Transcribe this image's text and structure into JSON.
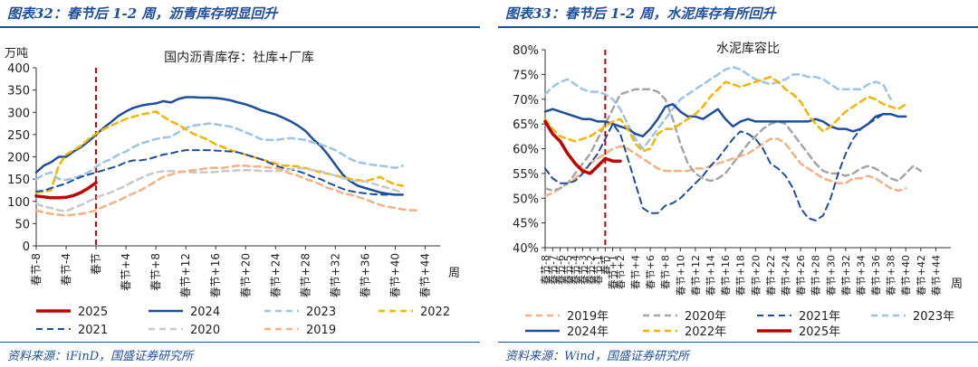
{
  "left": {
    "title": "图表32：春节后 1-2 周，沥青库存明显回升",
    "source": "资料来源：iFinD，国盛证券研究所",
    "chart_data": {
      "type": "line",
      "title": "国内沥青库存：社库+厂库",
      "ylabel": "万吨",
      "xlabel": "周",
      "ylim": [
        0,
        400
      ],
      "yticks": [
        0,
        50,
        100,
        150,
        200,
        250,
        300,
        350,
        400
      ],
      "x_start": -8,
      "x_end": 46,
      "xtick_labels": [
        "春节-8",
        "春节-4",
        "春节",
        "春节+4",
        "春节+8",
        "春节+12",
        "春节+16",
        "春节+20",
        "春节+24",
        "春节+28",
        "春节+32",
        "春节+36",
        "春节+40",
        "春节+44"
      ],
      "xtick_positions": [
        -8,
        -4,
        0,
        4,
        8,
        12,
        16,
        20,
        24,
        28,
        32,
        36,
        40,
        44
      ],
      "marker_x": 0,
      "marker_color": "#c00000",
      "series": [
        {
          "name": "2025",
          "color": "#c00000",
          "dash": "solid",
          "width": 3.5,
          "values": [
            112,
            110,
            108,
            108,
            109,
            113,
            120,
            130,
            142
          ]
        },
        {
          "name": "2024",
          "color": "#1f4e9c",
          "dash": "solid",
          "width": 2.5,
          "values": [
            165,
            180,
            188,
            200,
            200,
            212,
            222,
            235,
            250,
            265,
            278,
            292,
            302,
            310,
            315,
            318,
            320,
            325,
            322,
            330,
            334,
            334,
            333,
            333,
            332,
            330,
            327,
            322,
            318,
            312,
            305,
            300,
            295,
            288,
            280,
            270,
            258,
            240,
            225,
            205,
            182,
            160,
            145,
            135,
            130,
            125,
            120,
            117,
            115,
            115
          ]
        },
        {
          "name": "2023",
          "color": "#9dc3e6",
          "dash": "dashed",
          "width": 2.5,
          "values": [
            150,
            160,
            165,
            150,
            148,
            152,
            158,
            165,
            178,
            188,
            195,
            205,
            212,
            222,
            230,
            235,
            240,
            243,
            245,
            255,
            265,
            270,
            272,
            275,
            273,
            270,
            268,
            262,
            255,
            248,
            240,
            238,
            238,
            240,
            242,
            240,
            238,
            232,
            228,
            222,
            215,
            205,
            195,
            188,
            185,
            182,
            180,
            178,
            175,
            180
          ]
        },
        {
          "name": "2022",
          "color": "#f5b400",
          "dash": "dashed",
          "width": 2.5,
          "values": [
            120,
            122,
            125,
            180,
            205,
            215,
            225,
            240,
            252,
            262,
            270,
            278,
            285,
            290,
            295,
            298,
            302,
            290,
            280,
            272,
            262,
            252,
            245,
            238,
            228,
            222,
            215,
            210,
            205,
            200,
            195,
            190,
            185,
            180,
            180,
            178,
            175,
            170,
            165,
            162,
            158,
            155,
            150,
            148,
            145,
            150,
            155,
            145,
            138,
            135
          ]
        },
        {
          "name": "2021",
          "color": "#1f4e9c",
          "dash": "dashed",
          "width": 2.0,
          "values": [
            122,
            124,
            130,
            135,
            140,
            148,
            155,
            160,
            165,
            170,
            175,
            180,
            188,
            192,
            192,
            195,
            200,
            205,
            208,
            212,
            215,
            215,
            215,
            215,
            214,
            213,
            212,
            210,
            205,
            200,
            195,
            188,
            180,
            175,
            172,
            168,
            162,
            155,
            150,
            142,
            135,
            128,
            123,
            120,
            118,
            116,
            115,
            115,
            115,
            115
          ]
        },
        {
          "name": "2020",
          "color": "#c9c9c9",
          "dash": "dashed",
          "width": 2.5,
          "values": [
            95,
            88,
            85,
            80,
            78,
            85,
            92,
            100,
            108,
            115,
            120,
            128,
            135,
            145,
            152,
            160,
            165,
            168,
            168,
            167,
            166,
            165,
            165,
            165,
            166,
            168,
            168,
            170,
            170,
            170,
            168,
            168,
            168,
            170,
            172,
            175,
            173,
            170,
            168,
            162,
            158,
            152,
            148,
            145,
            145,
            140,
            135,
            130,
            125,
            120
          ]
        },
        {
          "name": "2019",
          "color": "#f4b183",
          "dash": "dashed",
          "width": 2.5,
          "values": [
            80,
            75,
            72,
            70,
            68,
            70,
            72,
            75,
            80,
            88,
            95,
            102,
            110,
            118,
            125,
            135,
            145,
            155,
            160,
            165,
            168,
            170,
            172,
            175,
            175,
            175,
            178,
            180,
            180,
            178,
            178,
            176,
            175,
            170,
            162,
            158,
            150,
            145,
            138,
            130,
            125,
            118,
            115,
            110,
            105,
            98,
            92,
            88,
            85,
            82,
            80,
            80
          ]
        }
      ]
    }
  },
  "right": {
    "title": "图表33：春节后 1-2 周，水泥库存有所回升",
    "source": "资料来源：Wind，国盛证券研究所",
    "chart_data": {
      "type": "line",
      "title": "水泥库容比",
      "xlabel": "周",
      "ylim": [
        40,
        80
      ],
      "yticks": [
        40,
        45,
        50,
        55,
        60,
        65,
        70,
        75,
        80
      ],
      "ytick_labels": [
        "40%",
        "45%",
        "50%",
        "55%",
        "60%",
        "65%",
        "70%",
        "75%",
        "80%"
      ],
      "x_start": -8,
      "x_end": 46,
      "xtick_labels": [
        "春节-8",
        "春节-7",
        "春节-6",
        "春节-5",
        "春节-4",
        "春节-3",
        "春节-2",
        "春节-1",
        "春节",
        "春节+1",
        "春节+2",
        "春节+4",
        "春节+6",
        "春节+8",
        "春节+10",
        "春节+12",
        "春节+14",
        "春节+16",
        "春节+18",
        "春节+20",
        "春节+22",
        "春节+24",
        "春节+26",
        "春节+28",
        "春节+30",
        "春节+32",
        "春节+34",
        "春节+36",
        "春节+38",
        "春节+40",
        "春节+42",
        "春节+44"
      ],
      "xtick_positions": [
        -8,
        -7,
        -6,
        -5,
        -4,
        -3,
        -2,
        -1,
        0,
        1,
        2,
        4,
        6,
        8,
        10,
        12,
        14,
        16,
        18,
        20,
        22,
        24,
        26,
        28,
        30,
        32,
        34,
        36,
        38,
        40,
        42,
        44
      ],
      "marker_x": 0,
      "marker_color": "#c00000",
      "series": [
        {
          "name": "2019年",
          "color": "#f4b183",
          "dash": "dashed",
          "width": 2.5,
          "values": [
            50.5,
            51,
            52,
            53,
            54,
            55.5,
            57,
            58,
            59,
            60,
            60.5,
            60,
            59,
            58,
            57,
            56,
            55.5,
            55.5,
            55.5,
            55.5,
            56,
            56,
            56.5,
            57,
            57.5,
            58,
            58.5,
            59,
            60,
            61,
            62,
            62,
            61,
            59,
            57,
            56,
            55,
            54,
            53.5,
            53,
            53,
            54,
            54,
            54.5,
            54,
            53,
            52,
            51.5,
            52
          ]
        },
        {
          "name": "2020年",
          "color": "#a6a6a6",
          "dash": "dashed",
          "width": 2.5,
          "values": [
            52,
            51.5,
            52,
            53,
            55,
            57,
            59,
            62,
            65,
            68,
            71,
            71.5,
            72,
            72,
            72,
            71.5,
            70,
            66,
            61,
            57,
            55,
            54,
            53.5,
            54,
            55,
            57,
            59,
            61,
            62.5,
            64,
            65,
            65.5,
            65,
            63,
            61,
            59,
            57,
            55.5,
            55,
            55,
            54.5,
            55,
            56,
            56.5,
            56,
            55,
            54,
            53.5,
            55,
            56.5,
            55.5
          ]
        },
        {
          "name": "2021年",
          "color": "#1f4e9c",
          "dash": "dashed",
          "width": 2.0,
          "values": [
            56,
            54,
            53,
            53,
            53.5,
            55,
            57,
            59,
            62,
            65,
            63,
            58,
            53,
            48,
            47,
            47,
            48.5,
            49,
            50,
            51.5,
            53,
            54.5,
            56.5,
            58,
            60,
            62,
            63.5,
            63,
            62,
            60,
            57,
            56,
            54.5,
            52,
            48,
            46,
            45.5,
            46.5,
            50,
            55,
            59,
            62,
            64,
            65,
            66,
            67
          ]
        },
        {
          "name": "2023年",
          "color": "#9dc3e6",
          "dash": "dashed",
          "width": 2.5,
          "values": [
            71,
            72.5,
            73.5,
            74,
            73,
            72,
            71.5,
            71.5,
            71,
            70,
            68,
            65,
            62,
            60,
            62,
            64,
            66,
            68,
            70,
            71,
            72,
            73,
            74,
            75,
            76,
            76.5,
            76,
            75,
            74,
            73.5,
            73,
            73.5,
            74,
            75,
            75,
            74.5,
            74.5,
            74,
            73,
            72,
            72,
            72,
            72,
            73,
            73.5,
            73,
            70
          ]
        },
        {
          "name": "2024年",
          "color": "#1f4e9c",
          "dash": "solid",
          "width": 2.5,
          "values": [
            67.5,
            68,
            67.5,
            67,
            66.5,
            66,
            66,
            65.5,
            65.5,
            65,
            64.5,
            64,
            63,
            62.5,
            64,
            66,
            68.5,
            69,
            67.5,
            66.5,
            66.5,
            66,
            67,
            68,
            66,
            64.5,
            65.5,
            66,
            65.5,
            65.5,
            65.5,
            65.5,
            65.5,
            65.5,
            65.5,
            65.5,
            66,
            65.5,
            64.5,
            64,
            64,
            63.5,
            64,
            65,
            66.5,
            67,
            67,
            66.5,
            66.5
          ]
        },
        {
          "name": "2022年",
          "color": "#f5b400",
          "dash": "dashed",
          "width": 2.5,
          "values": [
            66,
            64,
            62.5,
            62,
            61.5,
            62,
            62.5,
            63.5,
            64.5,
            65.5,
            66,
            64,
            61,
            59.5,
            60,
            63,
            64,
            64,
            65,
            66,
            67,
            68.5,
            70.5,
            72,
            73.5,
            73,
            72.5,
            73,
            73.5,
            74,
            74.5,
            73.5,
            72,
            71,
            69.5,
            67,
            65,
            63.5,
            64.5,
            66,
            67.5,
            68.5,
            69.5,
            70.5,
            70,
            69,
            68.5,
            68,
            69
          ]
        },
        {
          "name": "2025年",
          "color": "#c00000",
          "dash": "solid",
          "width": 3.5,
          "values": [
            65.5,
            63,
            61.5,
            59,
            57,
            55.5,
            55,
            56.5,
            58,
            57.5,
            57.5
          ]
        }
      ]
    }
  }
}
